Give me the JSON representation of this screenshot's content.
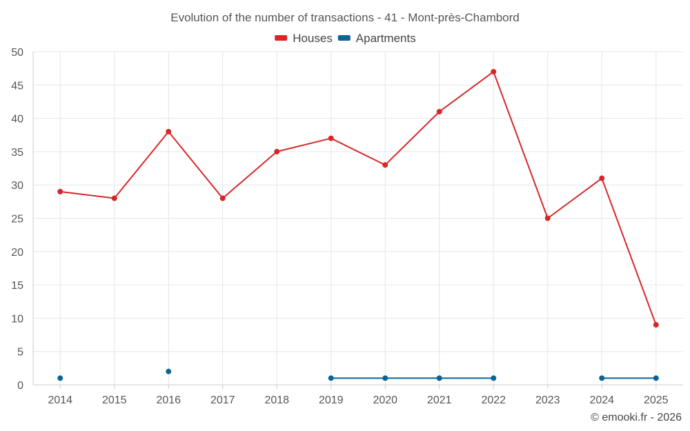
{
  "chart_data": {
    "type": "line",
    "title": "Evolution of the number of transactions - 41 - Mont-près-Chambord",
    "categories": [
      "2014",
      "2015",
      "2016",
      "2017",
      "2018",
      "2019",
      "2020",
      "2021",
      "2022",
      "2023",
      "2024",
      "2025"
    ],
    "series": [
      {
        "name": "Houses",
        "color": "#d62728",
        "values": [
          29,
          28,
          38,
          28,
          35,
          37,
          33,
          41,
          47,
          25,
          31,
          9
        ]
      },
      {
        "name": "Apartments",
        "color": "#0a6496",
        "values": [
          1,
          null,
          2,
          null,
          null,
          1,
          1,
          1,
          1,
          null,
          1,
          1
        ]
      }
    ],
    "ylim": [
      0,
      50
    ],
    "yticks": [
      0,
      5,
      10,
      15,
      20,
      25,
      30,
      35,
      40,
      45,
      50
    ],
    "xlabel": "",
    "ylabel": "",
    "legend_position": "top-center",
    "grid": true
  },
  "credit": "© emooki.fr - 2026"
}
